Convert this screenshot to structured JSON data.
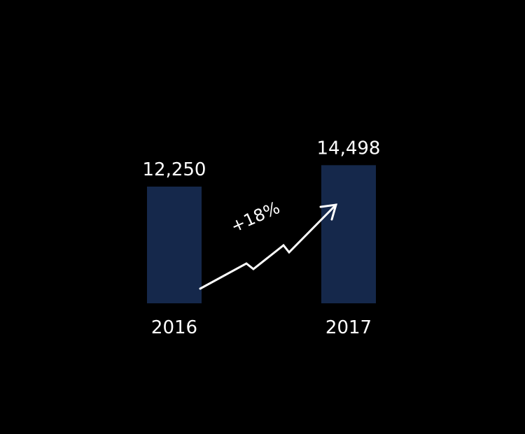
{
  "chart_data": {
    "type": "bar",
    "categories": [
      "2016",
      "2017"
    ],
    "values": [
      12250,
      14498
    ],
    "value_labels": [
      "12,250",
      "14,498"
    ],
    "annotation": "+18%",
    "bar_color": "#15284b",
    "background_color": "#000000",
    "text_color": "#ffffff",
    "arrow": "trend-up-arrow",
    "grid": false,
    "legend": "none"
  }
}
